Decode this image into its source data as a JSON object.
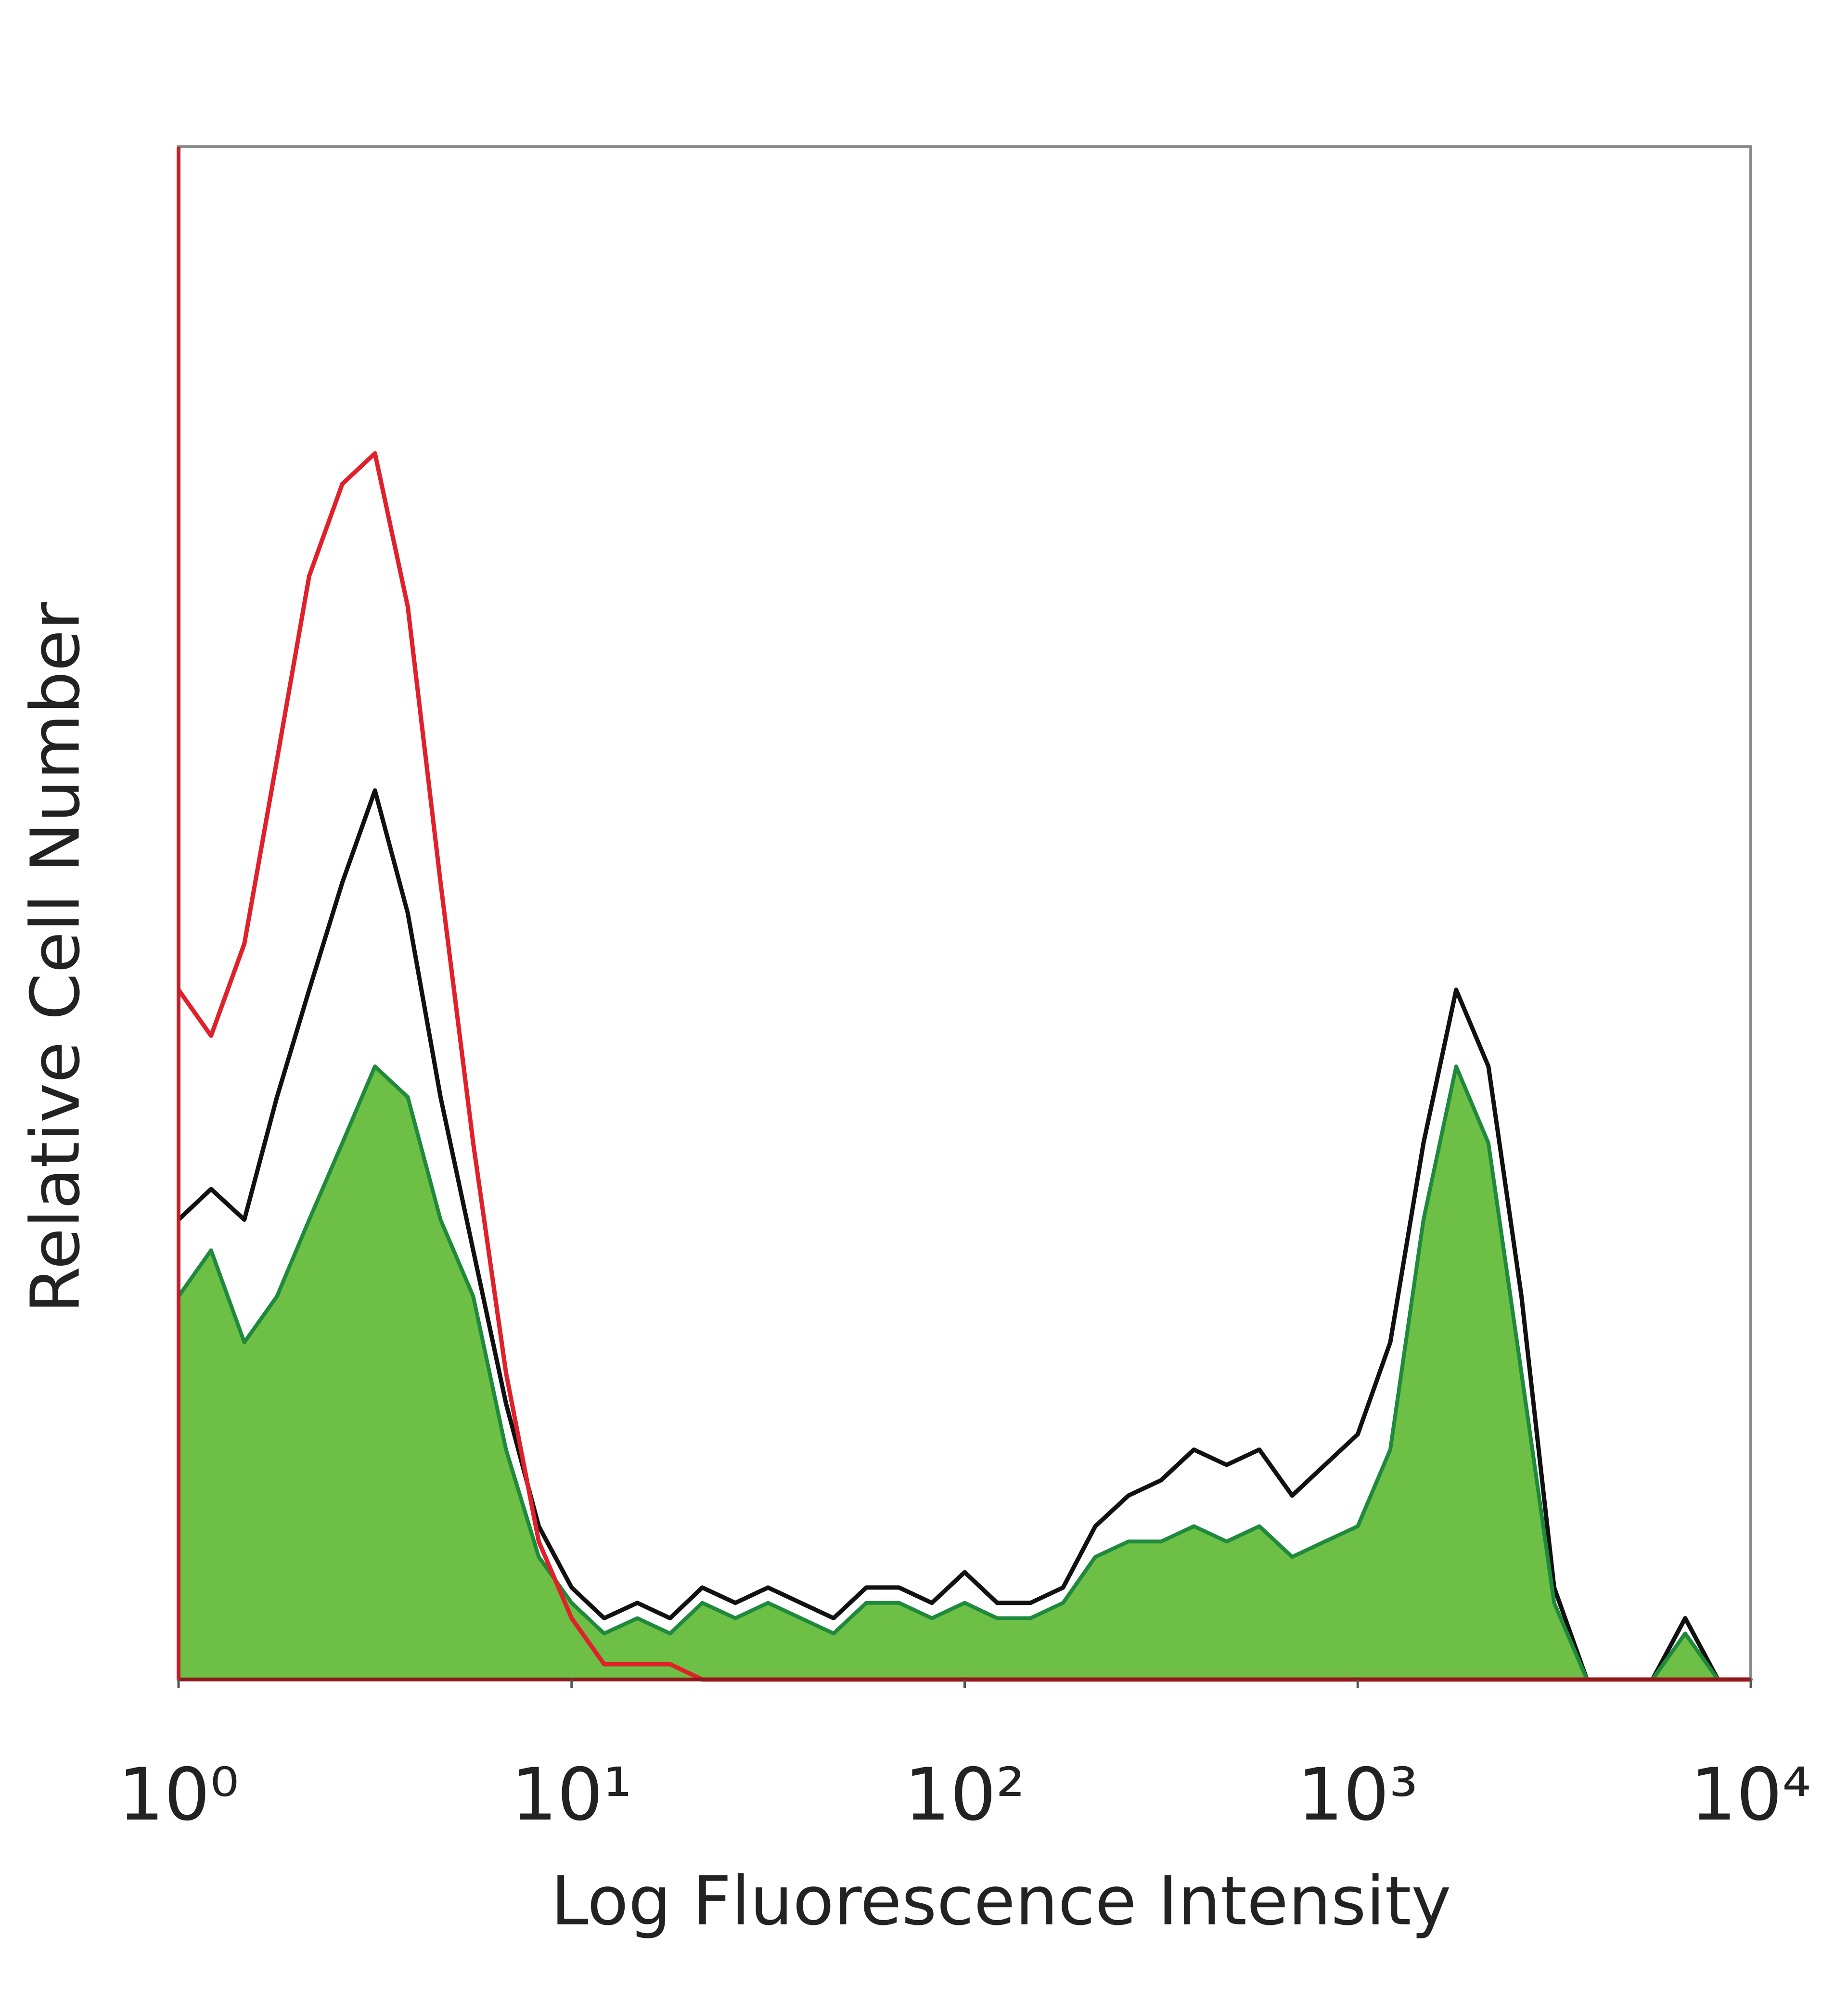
{
  "chart_data": {
    "type": "histogram-overlay",
    "x_label": "Log Fluorescence Intensity",
    "y_label": "Relative Cell Number",
    "xlog": true,
    "xlim": [
      1,
      10000
    ],
    "ylim": [
      0,
      100
    ],
    "xticks": [
      {
        "value": 1,
        "label": "10⁰"
      },
      {
        "value": 10,
        "label": "10¹"
      },
      {
        "value": 100,
        "label": "10²"
      },
      {
        "value": 1000,
        "label": "10³"
      },
      {
        "value": 10000,
        "label": "10⁴"
      }
    ],
    "x": [
      1,
      1.21,
      1.47,
      1.78,
      2.15,
      2.61,
      3.16,
      3.83,
      4.64,
      5.62,
      6.81,
      8.25,
      10,
      12.1,
      14.7,
      17.8,
      21.5,
      26.1,
      31.6,
      38.3,
      46.4,
      56.2,
      68.1,
      82.5,
      100,
      121,
      147,
      178,
      215,
      261,
      316,
      383,
      464,
      562,
      681,
      825,
      1000,
      1210,
      1470,
      1780,
      2150,
      2610,
      3160,
      3830,
      4640,
      5620,
      6810,
      8250,
      10000
    ],
    "series": [
      {
        "style": "line",
        "color": "#111111",
        "values": [
          30,
          32,
          30,
          38,
          45,
          52,
          58,
          50,
          38,
          28,
          18,
          10,
          6,
          4,
          5,
          4,
          6,
          5,
          6,
          5,
          4,
          6,
          6,
          5,
          7,
          5,
          5,
          6,
          10,
          12,
          13,
          15,
          14,
          15,
          12,
          14,
          16,
          22,
          35,
          45,
          40,
          25,
          6,
          0,
          0,
          0,
          4,
          0,
          0
        ]
      },
      {
        "style": "area",
        "color": "#6dbf45",
        "values": [
          25,
          28,
          22,
          25,
          30,
          35,
          40,
          38,
          30,
          25,
          15,
          8,
          5,
          3,
          4,
          3,
          5,
          4,
          5,
          4,
          3,
          5,
          5,
          4,
          5,
          4,
          4,
          5,
          8,
          9,
          9,
          10,
          9,
          10,
          8,
          9,
          10,
          15,
          30,
          40,
          35,
          20,
          5,
          0,
          0,
          0,
          3,
          0,
          0
        ]
      },
      {
        "style": "line",
        "color": "#e0202a",
        "values": [
          45,
          42,
          48,
          60,
          72,
          78,
          80,
          70,
          52,
          35,
          20,
          9,
          4,
          1,
          1,
          1,
          0,
          0,
          0,
          0,
          0,
          0,
          0,
          0,
          0,
          0,
          0,
          0,
          0,
          0,
          0,
          0,
          0,
          0,
          0,
          0,
          0,
          0,
          0,
          0,
          0,
          0,
          0,
          0,
          0,
          0,
          0,
          0,
          0
        ]
      }
    ]
  }
}
